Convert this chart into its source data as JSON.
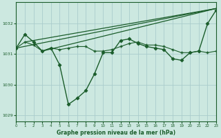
{
  "xlabel": "Graphe pression niveau de la mer (hPa)",
  "background_color": "#cce8e0",
  "grid_color": "#aacccc",
  "line_color": "#1a5c2a",
  "xlim": [
    0,
    23
  ],
  "ylim": [
    1028.8,
    1032.7
  ],
  "yticks": [
    1029,
    1030,
    1031,
    1032
  ],
  "xticks": [
    0,
    1,
    2,
    3,
    4,
    5,
    6,
    7,
    8,
    9,
    10,
    11,
    12,
    13,
    14,
    15,
    16,
    17,
    18,
    19,
    20,
    21,
    22,
    23
  ],
  "series": [
    {
      "x": [
        0,
        1,
        2,
        3,
        4,
        5,
        6,
        7,
        8,
        9,
        10,
        11,
        12,
        13,
        14,
        15,
        16,
        17,
        18,
        19,
        20,
        21,
        22,
        23
      ],
      "y": [
        1031.2,
        1031.65,
        1031.4,
        1031.1,
        1031.2,
        1030.65,
        1029.35,
        1029.55,
        1029.8,
        1030.35,
        1031.05,
        1031.05,
        1031.45,
        1031.5,
        1031.35,
        1031.25,
        1031.2,
        1031.15,
        1030.85,
        1030.8,
        1031.05,
        1031.1,
        1032.0,
        1032.45
      ],
      "marker": "D",
      "markersize": 2.5,
      "linewidth": 1.0
    },
    {
      "x": [
        0,
        23
      ],
      "y": [
        1031.2,
        1032.5
      ],
      "marker": null,
      "markersize": 0,
      "linewidth": 0.9
    },
    {
      "x": [
        1,
        23
      ],
      "y": [
        1031.4,
        1032.5
      ],
      "marker": null,
      "markersize": 0,
      "linewidth": 0.9
    },
    {
      "x": [
        0,
        1,
        2,
        3,
        4,
        5,
        6,
        7,
        8,
        9,
        10,
        11,
        12,
        13,
        14,
        15,
        16,
        17,
        18,
        19,
        20,
        21,
        22,
        23
      ],
      "y": [
        1031.2,
        1031.4,
        1031.3,
        1031.1,
        1031.2,
        1031.15,
        1031.2,
        1031.25,
        1031.25,
        1031.1,
        1031.1,
        1031.15,
        1031.25,
        1031.35,
        1031.4,
        1031.3,
        1031.3,
        1031.25,
        1031.15,
        1031.05,
        1031.05,
        1031.1,
        1031.05,
        1031.1
      ],
      "marker": "+",
      "markersize": 3.5,
      "linewidth": 0.8
    },
    {
      "x": [
        3,
        23
      ],
      "y": [
        1031.1,
        1032.5
      ],
      "marker": null,
      "markersize": 0,
      "linewidth": 0.9
    }
  ]
}
